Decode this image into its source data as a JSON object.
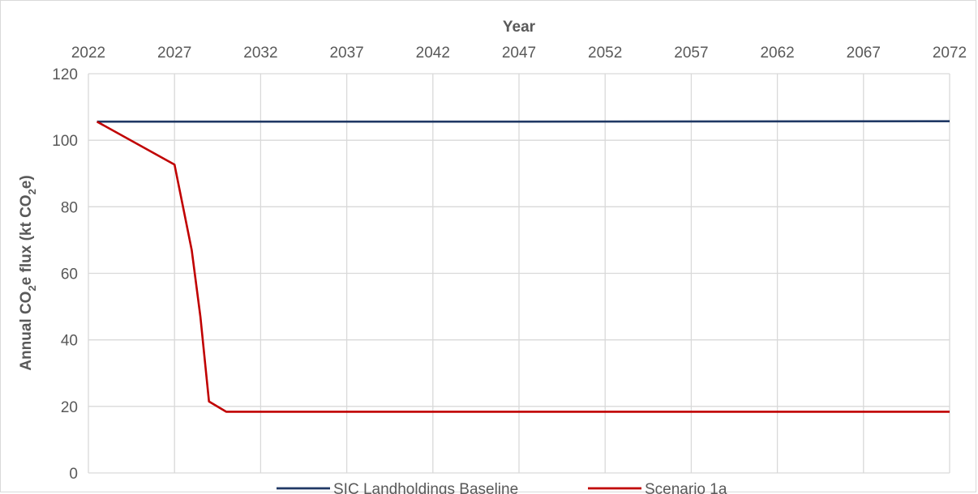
{
  "chart_data": {
    "type": "line",
    "title": "",
    "xlabel": "Year",
    "ylabel": "Annual CO2e flux (kt CO2e)",
    "xlim": [
      2022,
      2072
    ],
    "ylim": [
      0,
      120
    ],
    "x_ticks": [
      2022,
      2027,
      2032,
      2037,
      2042,
      2047,
      2052,
      2057,
      2062,
      2067,
      2072
    ],
    "y_ticks": [
      0,
      20,
      40,
      60,
      80,
      100,
      120
    ],
    "grid": true,
    "x_axis_position": "top",
    "legend_position": "bottom",
    "series": [
      {
        "name": "SIC Landholdings Baseline",
        "color": "#1f3864",
        "points": [
          [
            2022.5,
            105.6
          ],
          [
            2047,
            105.6
          ],
          [
            2072,
            105.7
          ]
        ]
      },
      {
        "name": "Scenario 1a",
        "color": "#c00000",
        "points": [
          [
            2022.5,
            105.6
          ],
          [
            2027,
            92.7
          ],
          [
            2028,
            67
          ],
          [
            2028.5,
            47
          ],
          [
            2029,
            21.5
          ],
          [
            2030,
            18.4
          ],
          [
            2040,
            18.4
          ],
          [
            2050,
            18.4
          ],
          [
            2060,
            18.4
          ],
          [
            2072,
            18.4
          ]
        ]
      }
    ]
  }
}
